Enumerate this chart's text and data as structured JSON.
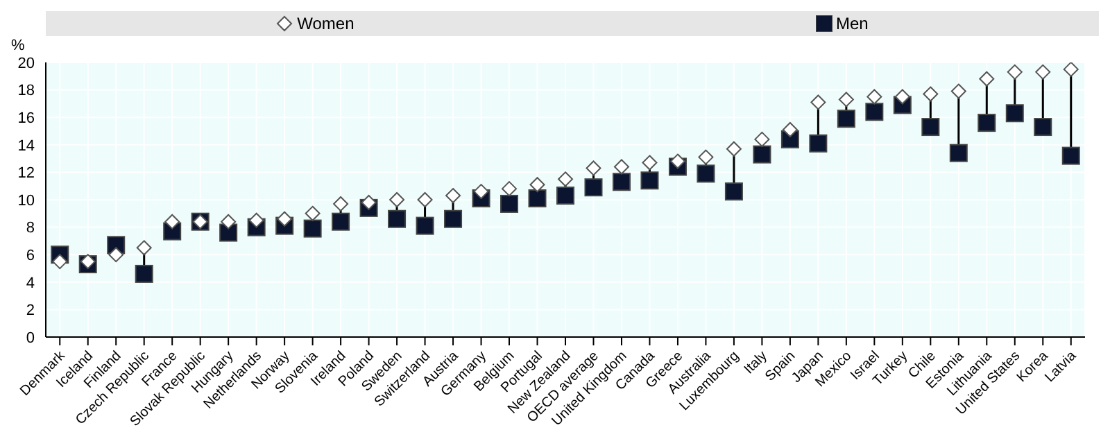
{
  "chart_data": {
    "type": "scatter",
    "ylabel": "%",
    "categories": [
      "Denmark",
      "Iceland",
      "Finland",
      "Czech Republic",
      "France",
      "Slovak Republic",
      "Hungary",
      "Netherlands",
      "Norway",
      "Slovenia",
      "Ireland",
      "Poland",
      "Sweden",
      "Switzerland",
      "Austria",
      "Germany",
      "Belgium",
      "Portugal",
      "New Zealand",
      "OECD average",
      "United Kingdom",
      "Canada",
      "Greece",
      "Australia",
      "Luxembourg",
      "Italy",
      "Spain",
      "Japan",
      "Mexico",
      "Israel",
      "Turkey",
      "Chile",
      "Estonia",
      "Lithuania",
      "United States",
      "Korea",
      "Latvia"
    ],
    "series": [
      {
        "name": "Women",
        "color": "#ffffff",
        "marker": "diamond",
        "values": [
          5.5,
          5.5,
          6.0,
          6.5,
          8.4,
          8.4,
          8.4,
          8.5,
          8.6,
          9.0,
          9.7,
          9.8,
          10.0,
          10.0,
          10.3,
          10.6,
          10.8,
          11.1,
          11.5,
          12.3,
          12.4,
          12.7,
          12.8,
          13.1,
          13.7,
          14.4,
          15.1,
          17.1,
          17.3,
          17.5,
          17.5,
          17.7,
          17.9,
          18.8,
          19.3,
          19.3,
          19.5
        ]
      },
      {
        "name": "Men",
        "color": "#0b1530",
        "marker": "square",
        "values": [
          6.0,
          5.3,
          6.7,
          4.6,
          7.7,
          8.4,
          7.6,
          8.0,
          8.1,
          7.9,
          8.4,
          9.4,
          8.6,
          8.1,
          8.6,
          10.1,
          9.7,
          10.1,
          10.3,
          10.9,
          11.3,
          11.4,
          12.4,
          11.9,
          10.6,
          13.3,
          14.4,
          14.1,
          15.9,
          16.4,
          16.9,
          15.3,
          13.4,
          15.6,
          16.3,
          15.3,
          13.2
        ]
      }
    ],
    "ylim": [
      0,
      20
    ],
    "yticks": [
      0,
      2,
      4,
      6,
      8,
      10,
      12,
      14,
      16,
      18,
      20
    ],
    "grid": true,
    "legend": "top"
  }
}
